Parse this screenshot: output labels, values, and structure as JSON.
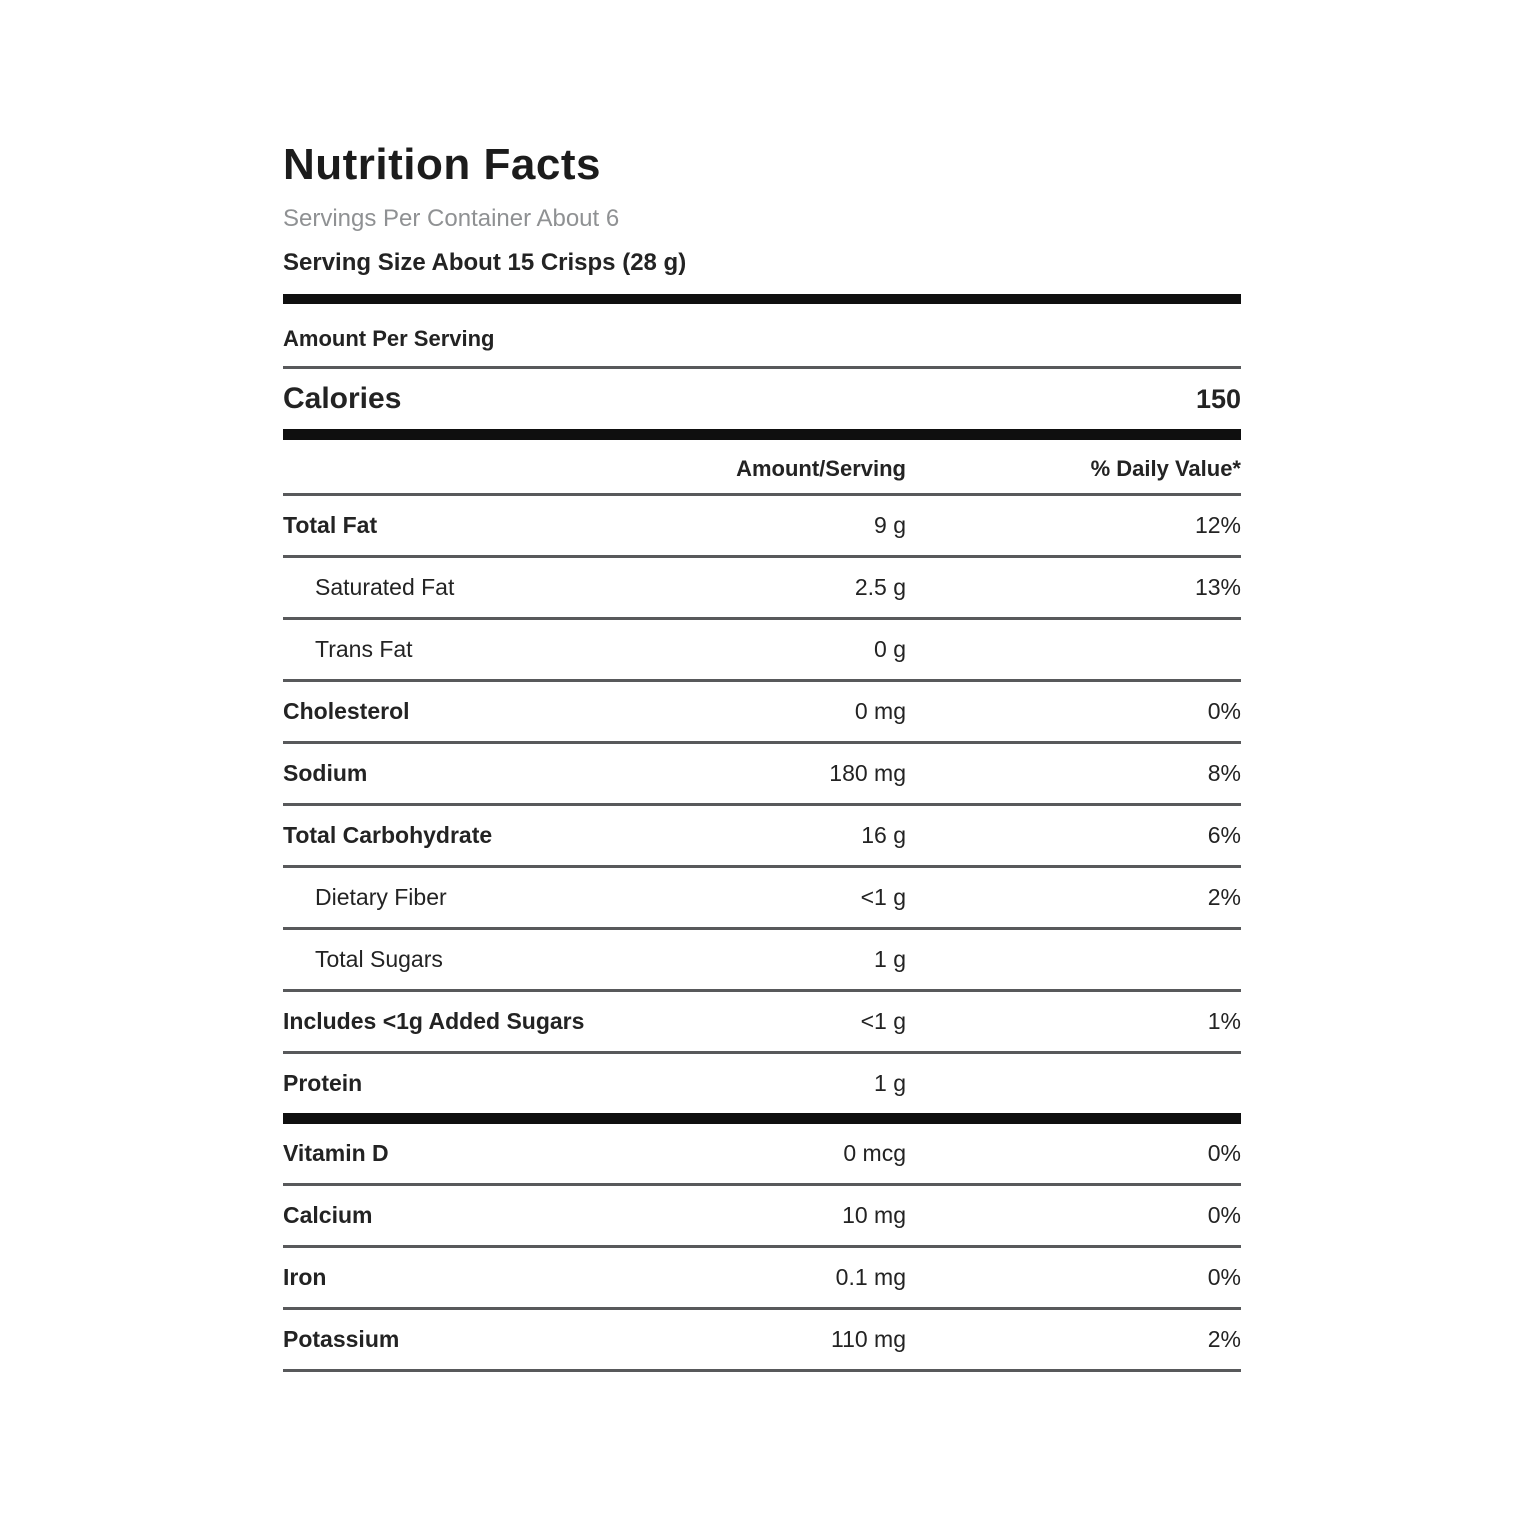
{
  "label": {
    "title": "Nutrition Facts",
    "servings_per_container": "Servings Per Container About 6",
    "serving_size": "Serving Size About 15 Crisps (28 g)",
    "amount_per_serving": "Amount Per Serving",
    "calories": {
      "label": "Calories",
      "value": "150"
    },
    "columns": {
      "amount": "Amount/Serving",
      "daily_value": "% Daily Value*"
    },
    "rows": [
      {
        "name": "Total Fat",
        "amount": "9 g",
        "dv": "12%"
      },
      {
        "name": "Saturated Fat",
        "amount": "2.5 g",
        "dv": "13%"
      },
      {
        "name": "Trans Fat",
        "amount": "0 g",
        "dv": ""
      },
      {
        "name": "Cholesterol",
        "amount": "0 mg",
        "dv": "0%"
      },
      {
        "name": "Sodium",
        "amount": "180 mg",
        "dv": "8%"
      },
      {
        "name": "Total Carbohydrate",
        "amount": "16 g",
        "dv": "6%"
      },
      {
        "name": "Dietary Fiber",
        "amount": "<1 g",
        "dv": "2%"
      },
      {
        "name": "Total Sugars",
        "amount": "1 g",
        "dv": ""
      },
      {
        "name": "Includes <1g Added Sugars",
        "amount": "<1 g",
        "dv": "1%"
      },
      {
        "name": "Protein",
        "amount": "1 g",
        "dv": ""
      },
      {
        "name": "Vitamin D",
        "amount": "0 mcg",
        "dv": "0%"
      },
      {
        "name": "Calcium",
        "amount": "10 mg",
        "dv": "0%"
      },
      {
        "name": "Iron",
        "amount": "0.1 mg",
        "dv": "0%"
      },
      {
        "name": "Potassium",
        "amount": "110 mg",
        "dv": "2%"
      }
    ],
    "colors": {
      "text": "#232323",
      "muted_text": "#8f9193",
      "divider": "#58595b",
      "thick_bar": "#0f0f0f",
      "background": "#ffffff"
    }
  }
}
